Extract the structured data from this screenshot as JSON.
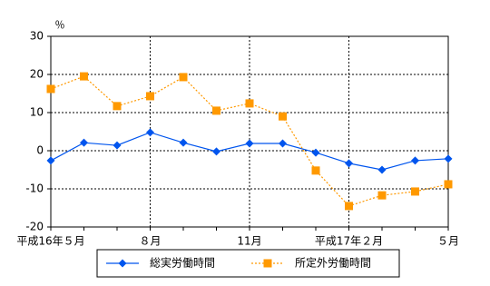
{
  "chart_data": {
    "type": "line",
    "y_label": "％",
    "categories": [
      "平成16年５月",
      null,
      null,
      "８月",
      null,
      null,
      "11月",
      null,
      null,
      "平成17年２月",
      null,
      null,
      "５月"
    ],
    "series": [
      {
        "name": "総実労働時間",
        "color": "#0055ee",
        "marker": "diamond",
        "line_style": "solid",
        "values": [
          -2.6,
          2.1,
          1.4,
          4.8,
          2.1,
          -0.2,
          1.9,
          1.9,
          -0.5,
          -3.3,
          -5.0,
          -2.6,
          -2.1
        ]
      },
      {
        "name": "所定外労働時間",
        "color": "#ff9900",
        "marker": "square",
        "line_style": "dotted",
        "values": [
          16.2,
          19.5,
          11.7,
          14.3,
          19.3,
          10.5,
          12.4,
          9.0,
          -5.2,
          -14.5,
          -11.7,
          -10.7,
          -8.8
        ]
      }
    ],
    "ylim": [
      -20,
      30
    ],
    "yticks": [
      -20,
      -10,
      0,
      10,
      20,
      30
    ],
    "grid": true,
    "legend": "bottom"
  }
}
